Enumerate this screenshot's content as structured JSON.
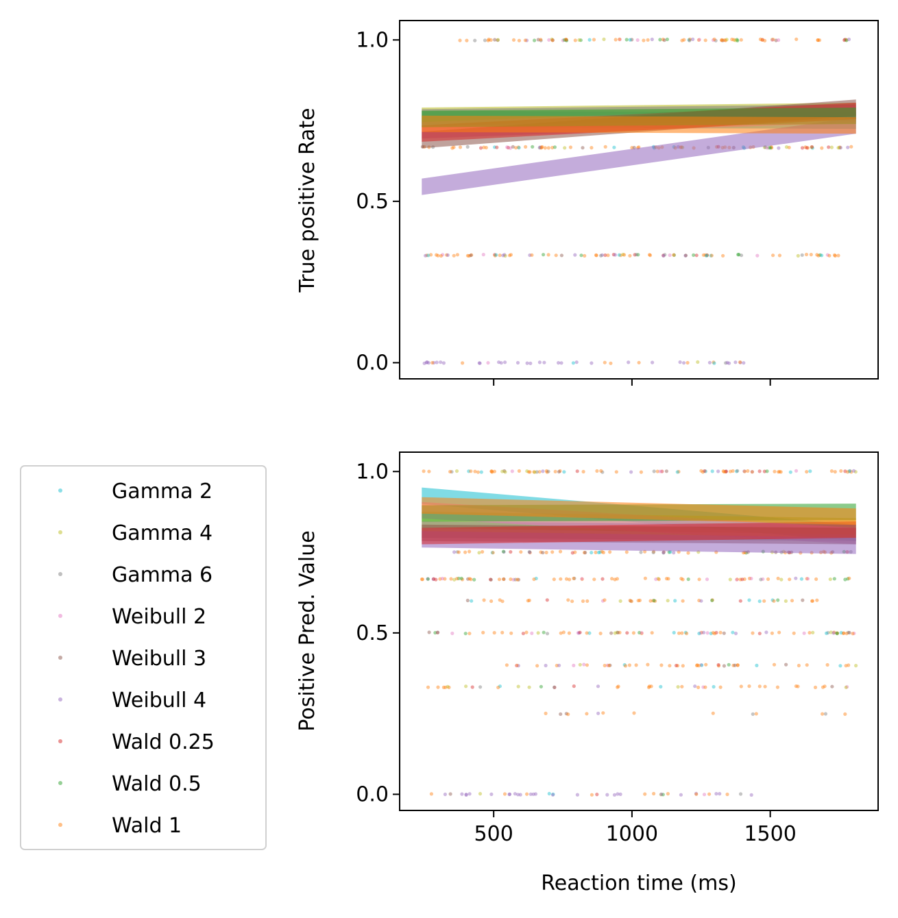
{
  "chart_data": [
    {
      "type": "scatter",
      "panel": "top",
      "xlabel": "",
      "ylabel": "True positive Rate",
      "xlim": [
        160,
        1890
      ],
      "ylim": [
        -0.05,
        1.06
      ],
      "xticks": [
        500,
        1000,
        1500
      ],
      "xtick_labels": [
        "",
        "",
        ""
      ],
      "yticks": [
        0.0,
        0.5,
        1.0
      ],
      "ytick_labels": [
        "0.0",
        "0.5",
        "1.0"
      ],
      "grid": false,
      "scatter_levels": [
        {
          "y": 1.0,
          "x_from": 340,
          "x_to": 1810,
          "count": 90
        },
        {
          "y": 0.667,
          "x_from": 240,
          "x_to": 1810,
          "count": 90
        },
        {
          "y": 0.333,
          "x_from": 240,
          "x_to": 1780,
          "count": 90
        },
        {
          "y": 0.0,
          "x_from": 240,
          "x_to": 1440,
          "count": 45
        }
      ],
      "series": [
        {
          "name": "Gamma 2",
          "y_start": 0.755,
          "y_end": 0.75
        },
        {
          "name": "Gamma 4",
          "y_start": 0.765,
          "y_end": 0.78
        },
        {
          "name": "Gamma 6",
          "y_start": 0.76,
          "y_end": 0.775
        },
        {
          "name": "Weibull 2",
          "y_start": 0.72,
          "y_end": 0.77
        },
        {
          "name": "Weibull 3",
          "y_start": 0.69,
          "y_end": 0.79
        },
        {
          "name": "Weibull 4",
          "y_start": 0.545,
          "y_end": 0.735
        },
        {
          "name": "Wald 0.25",
          "y_start": 0.71,
          "y_end": 0.78
        },
        {
          "name": "Wald 0.5",
          "y_start": 0.755,
          "y_end": 0.765
        },
        {
          "name": "Wald 1",
          "y_start": 0.74,
          "y_end": 0.735
        }
      ]
    },
    {
      "type": "scatter",
      "panel": "bottom",
      "xlabel": "Reaction time (ms)",
      "ylabel": "Positive Pred. Value",
      "xlim": [
        160,
        1890
      ],
      "ylim": [
        -0.05,
        1.06
      ],
      "xticks": [
        500,
        1000,
        1500
      ],
      "xtick_labels": [
        "500",
        "1000",
        "1500"
      ],
      "yticks": [
        0.0,
        0.5,
        1.0
      ],
      "ytick_labels": [
        "0.0",
        "0.5",
        "1.0"
      ],
      "grid": false,
      "scatter_levels": [
        {
          "y": 1.0,
          "x_from": 240,
          "x_to": 1810,
          "count": 90
        },
        {
          "y": 0.75,
          "x_from": 340,
          "x_to": 1810,
          "count": 70
        },
        {
          "y": 0.667,
          "x_from": 240,
          "x_to": 1810,
          "count": 80
        },
        {
          "y": 0.6,
          "x_from": 300,
          "x_to": 1700,
          "count": 45
        },
        {
          "y": 0.5,
          "x_from": 240,
          "x_to": 1810,
          "count": 80
        },
        {
          "y": 0.4,
          "x_from": 460,
          "x_to": 1810,
          "count": 50
        },
        {
          "y": 0.333,
          "x_from": 260,
          "x_to": 1810,
          "count": 45
        },
        {
          "y": 0.25,
          "x_from": 530,
          "x_to": 1810,
          "count": 14
        },
        {
          "y": 0.0,
          "x_from": 240,
          "x_to": 1440,
          "count": 45
        }
      ],
      "series": [
        {
          "name": "Gamma 2",
          "y_start": 0.925,
          "y_end": 0.81
        },
        {
          "name": "Gamma 4",
          "y_start": 0.85,
          "y_end": 0.83
        },
        {
          "name": "Gamma 6",
          "y_start": 0.82,
          "y_end": 0.81
        },
        {
          "name": "Weibull 2",
          "y_start": 0.88,
          "y_end": 0.8
        },
        {
          "name": "Weibull 3",
          "y_start": 0.81,
          "y_end": 0.8
        },
        {
          "name": "Weibull 4",
          "y_start": 0.79,
          "y_end": 0.77
        },
        {
          "name": "Wald 0.25",
          "y_start": 0.8,
          "y_end": 0.82
        },
        {
          "name": "Wald 0.5",
          "y_start": 0.87,
          "y_end": 0.875
        },
        {
          "name": "Wald 1",
          "y_start": 0.895,
          "y_end": 0.86
        }
      ]
    }
  ],
  "legend": {
    "placement": "left",
    "entries": [
      "Gamma 2",
      "Gamma 4",
      "Gamma 6",
      "Weibull 2",
      "Weibull 3",
      "Weibull 4",
      "Wald 0.25",
      "Wald 0.5",
      "Wald 1"
    ]
  },
  "colors": {
    "Gamma 2": "#17becf",
    "Gamma 4": "#bcbd22",
    "Gamma 6": "#7f7f7f",
    "Weibull 2": "#e377c2",
    "Weibull 3": "#8c564b",
    "Weibull 4": "#9467bd",
    "Wald 0.25": "#d62728",
    "Wald 0.5": "#2ca02c",
    "Wald 1": "#ff7f0e"
  }
}
